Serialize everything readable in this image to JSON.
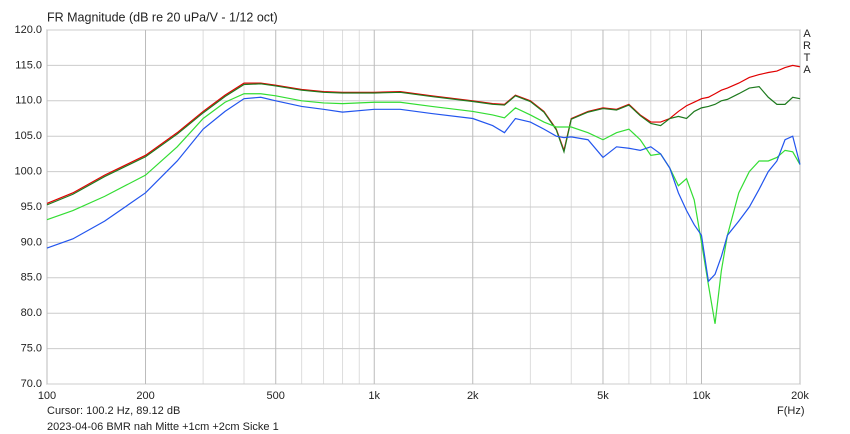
{
  "chart_data": {
    "type": "line",
    "title": "FR Magnitude (dB re 20 uPa/V - 1/12 oct)",
    "watermark": [
      "A",
      "R",
      "T",
      "A"
    ],
    "xlabel": "F(Hz)",
    "footer": [
      "Cursor: 100.2 Hz, 89.12 dB",
      "2023-04-06 BMR nah Mitte +1cm +2cm Sicke 1"
    ],
    "xscale": "log",
    "grid": true,
    "x": [
      100,
      120,
      150,
      200,
      250,
      300,
      350,
      400,
      450,
      500,
      600,
      700,
      800,
      1000,
      1200,
      1500,
      2000,
      2300,
      2500,
      2700,
      3000,
      3300,
      3600,
      3800,
      4000,
      4500,
      5000,
      5500,
      6000,
      6500,
      7000,
      7500,
      8000,
      8500,
      9000,
      9500,
      10000,
      10500,
      11000,
      11500,
      12000,
      13000,
      14000,
      15000,
      16000,
      17000,
      18000,
      19000,
      20000
    ],
    "series": [
      {
        "color": "#e00000",
        "values": [
          95.5,
          97,
          99.5,
          102.3,
          105.5,
          108.5,
          110.8,
          112.5,
          112.5,
          112.2,
          111.6,
          111.3,
          111.2,
          111.2,
          111.3,
          110.7,
          110,
          109.6,
          109.5,
          110.8,
          110,
          108.5,
          106,
          103,
          107.5,
          108.5,
          109,
          108.8,
          109.5,
          108,
          107,
          107,
          107.5,
          108.5,
          109.3,
          109.8,
          110.3,
          110.5,
          111,
          111.5,
          111.8,
          112.5,
          113.3,
          113.7,
          114,
          114.2,
          114.7,
          115,
          114.8
        ]
      },
      {
        "color": "#1e7a1e",
        "values": [
          95.3,
          96.8,
          99.3,
          102.1,
          105.3,
          108.3,
          110.6,
          112.3,
          112.4,
          112.1,
          111.5,
          111.2,
          111.1,
          111.1,
          111.2,
          110.6,
          109.9,
          109.5,
          109.4,
          110.7,
          109.9,
          108.4,
          105.9,
          102.8,
          107.4,
          108.4,
          108.9,
          108.7,
          109.4,
          107.9,
          106.8,
          106.5,
          107.5,
          107.8,
          107.5,
          108.5,
          109,
          109.2,
          109.5,
          110,
          110.2,
          111,
          111.8,
          112,
          110.5,
          109.5,
          109.5,
          110.5,
          110.3
        ]
      },
      {
        "color": "#33dd33",
        "values": [
          93.2,
          94.5,
          96.5,
          99.5,
          103.5,
          107.5,
          109.8,
          111,
          111,
          110.7,
          110,
          109.7,
          109.6,
          109.8,
          109.8,
          109.2,
          108.5,
          108,
          107.6,
          109,
          108,
          107,
          106.3,
          106.3,
          106.3,
          105.5,
          104.5,
          105.5,
          106,
          104.5,
          102.3,
          102.5,
          100.5,
          98,
          99,
          96,
          90,
          84,
          78.5,
          86,
          91,
          97,
          100,
          101.5,
          101.5,
          102,
          103,
          102.8,
          101
        ]
      },
      {
        "color": "#2255ee",
        "values": [
          89.2,
          90.5,
          93,
          97,
          101.5,
          106,
          108.5,
          110.3,
          110.5,
          110,
          109.2,
          108.8,
          108.4,
          108.8,
          108.8,
          108.2,
          107.5,
          106.5,
          105.5,
          107.5,
          107,
          106,
          105,
          104.8,
          104.9,
          104.5,
          102,
          103.5,
          103.3,
          103,
          103.5,
          102.5,
          100.5,
          97,
          94.5,
          92.5,
          91,
          84.5,
          85.5,
          88,
          91,
          93,
          95,
          97.5,
          100,
          101.5,
          104.5,
          105,
          101
        ]
      }
    ],
    "xlim": [
      100,
      20000
    ],
    "xticks": [
      100,
      200,
      500,
      {
        "value": 1000,
        "label": "1k"
      },
      {
        "value": 2000,
        "label": "2k"
      },
      {
        "value": 5000,
        "label": "5k"
      },
      {
        "value": 10000,
        "label": "10k"
      },
      {
        "value": 20000,
        "label": "20k"
      }
    ],
    "xminor": [
      300,
      400,
      600,
      700,
      800,
      900,
      3000,
      4000,
      6000,
      7000,
      8000,
      9000
    ],
    "ylim": [
      70,
      120
    ],
    "yticks": [
      {
        "value": 70,
        "label": "70.0"
      },
      {
        "value": 75,
        "label": "75.0"
      },
      {
        "value": 80,
        "label": "80.0"
      },
      {
        "value": 85,
        "label": "85.0"
      },
      {
        "value": 90,
        "label": "90.0"
      },
      {
        "value": 95,
        "label": "95.0"
      },
      {
        "value": 100,
        "label": "100.0"
      },
      {
        "value": 105,
        "label": "105.0"
      },
      {
        "value": 110,
        "label": "110.0"
      },
      {
        "value": 115,
        "label": "115.0"
      },
      {
        "value": 120,
        "label": "120.0"
      }
    ]
  }
}
